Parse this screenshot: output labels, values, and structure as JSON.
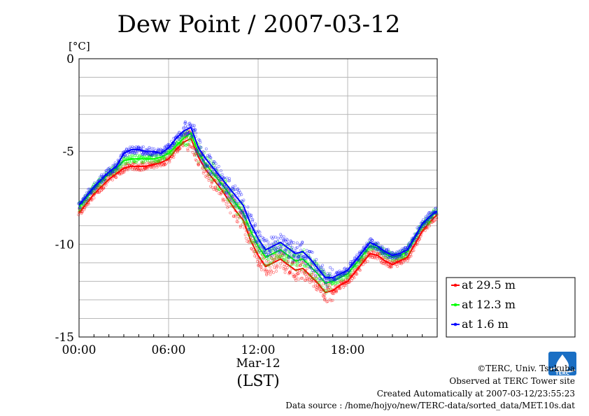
{
  "chart_data": {
    "type": "line",
    "title": "Dew Point / 2007-03-12",
    "ylabel": "[°C]",
    "xlabel_date": "Mar-12",
    "xlabel_unit": "(LST)",
    "ylim": [
      -15,
      0
    ],
    "y_ticks": [
      0,
      -5,
      -10,
      -15
    ],
    "y_tick_labels": [
      "0",
      "-5",
      "-10",
      "-15"
    ],
    "xlim": [
      0,
      24
    ],
    "x_ticks": [
      0,
      6,
      12,
      18
    ],
    "x_tick_labels": [
      "00:00",
      "06:00",
      "12:00",
      "18:00"
    ],
    "grid": true,
    "legend_position": "right-bottom",
    "series": [
      {
        "name": "at 29.5 m",
        "color": "#ff0000",
        "x": [
          0,
          0.5,
          1,
          1.5,
          2,
          2.5,
          3,
          3.5,
          4,
          4.5,
          5,
          5.5,
          6,
          6.5,
          7,
          7.5,
          8,
          8.5,
          9,
          9.5,
          10,
          10.5,
          11,
          11.5,
          12,
          12.5,
          13,
          13.5,
          14,
          14.5,
          15,
          15.5,
          16,
          16.5,
          17,
          17.5,
          18,
          18.5,
          19,
          19.5,
          20,
          20.5,
          21,
          21.5,
          22,
          22.5,
          23,
          23.5,
          24
        ],
        "y": [
          -8.3,
          -7.8,
          -7.3,
          -6.9,
          -6.5,
          -6.2,
          -5.9,
          -5.8,
          -5.8,
          -5.8,
          -5.7,
          -5.6,
          -5.4,
          -4.9,
          -4.5,
          -4.3,
          -5.3,
          -6.0,
          -6.5,
          -7.0,
          -7.6,
          -8.2,
          -8.7,
          -9.8,
          -10.6,
          -11.2,
          -11.0,
          -10.8,
          -11.1,
          -11.4,
          -11.3,
          -11.7,
          -12.1,
          -12.6,
          -12.5,
          -12.2,
          -12.0,
          -11.5,
          -11.0,
          -10.5,
          -10.6,
          -10.9,
          -11.1,
          -10.9,
          -10.7,
          -10.0,
          -9.3,
          -8.8,
          -8.4
        ]
      },
      {
        "name": "at 12.3 m",
        "color": "#00ff00",
        "x": [
          0,
          0.5,
          1,
          1.5,
          2,
          2.5,
          3,
          3.5,
          4,
          4.5,
          5,
          5.5,
          6,
          6.5,
          7,
          7.5,
          8,
          8.5,
          9,
          9.5,
          10,
          10.5,
          11,
          11.5,
          12,
          12.5,
          13,
          13.5,
          14,
          14.5,
          15,
          15.5,
          16,
          16.5,
          17,
          17.5,
          18,
          18.5,
          19,
          19.5,
          20,
          20.5,
          21,
          21.5,
          22,
          22.5,
          23,
          23.5,
          24
        ],
        "y": [
          -8.0,
          -7.5,
          -7.0,
          -6.6,
          -6.2,
          -5.9,
          -5.5,
          -5.4,
          -5.4,
          -5.4,
          -5.4,
          -5.3,
          -5.1,
          -4.7,
          -4.3,
          -4.0,
          -5.1,
          -5.7,
          -6.2,
          -6.7,
          -7.2,
          -7.8,
          -8.3,
          -9.3,
          -10.1,
          -10.7,
          -10.5,
          -10.3,
          -10.6,
          -10.9,
          -10.8,
          -11.2,
          -11.6,
          -12.1,
          -12.0,
          -11.8,
          -11.6,
          -11.1,
          -10.6,
          -10.1,
          -10.2,
          -10.5,
          -10.7,
          -10.6,
          -10.4,
          -9.7,
          -9.0,
          -8.6,
          -8.2
        ]
      },
      {
        "name": "at 1.6 m",
        "color": "#0000ff",
        "x": [
          0,
          0.5,
          1,
          1.5,
          2,
          2.5,
          3,
          3.5,
          4,
          4.5,
          5,
          5.5,
          6,
          6.5,
          7,
          7.5,
          8,
          8.5,
          9,
          9.5,
          10,
          10.5,
          11,
          11.5,
          12,
          12.5,
          13,
          13.5,
          14,
          14.5,
          15,
          15.5,
          16,
          16.5,
          17,
          17.5,
          18,
          18.5,
          19,
          19.5,
          20,
          20.5,
          21,
          21.5,
          22,
          22.5,
          23,
          23.5,
          24
        ],
        "y": [
          -7.9,
          -7.4,
          -6.9,
          -6.5,
          -6.1,
          -5.8,
          -5.1,
          -4.9,
          -4.9,
          -5.0,
          -5.0,
          -5.1,
          -4.8,
          -4.3,
          -3.9,
          -3.7,
          -4.8,
          -5.4,
          -5.9,
          -6.4,
          -6.9,
          -7.4,
          -7.9,
          -8.9,
          -9.7,
          -10.3,
          -10.1,
          -9.9,
          -10.2,
          -10.5,
          -10.4,
          -10.8,
          -11.3,
          -11.8,
          -11.8,
          -11.6,
          -11.4,
          -10.9,
          -10.4,
          -9.9,
          -10.1,
          -10.4,
          -10.6,
          -10.5,
          -10.3,
          -9.6,
          -8.9,
          -8.5,
          -8.2
        ]
      }
    ]
  },
  "credits": {
    "copyright": "©TERC, Univ. Tsukuba",
    "observed": "Observed at TERC Tower site",
    "created": "Created Automatically at 2007-03-12/23:55:23",
    "source": "Data source : /home/hojyo/new/TERC-data/sorted_data/MET.10s.dat"
  },
  "logo": {
    "text": "TERC",
    "color": "#1a6fc4"
  }
}
